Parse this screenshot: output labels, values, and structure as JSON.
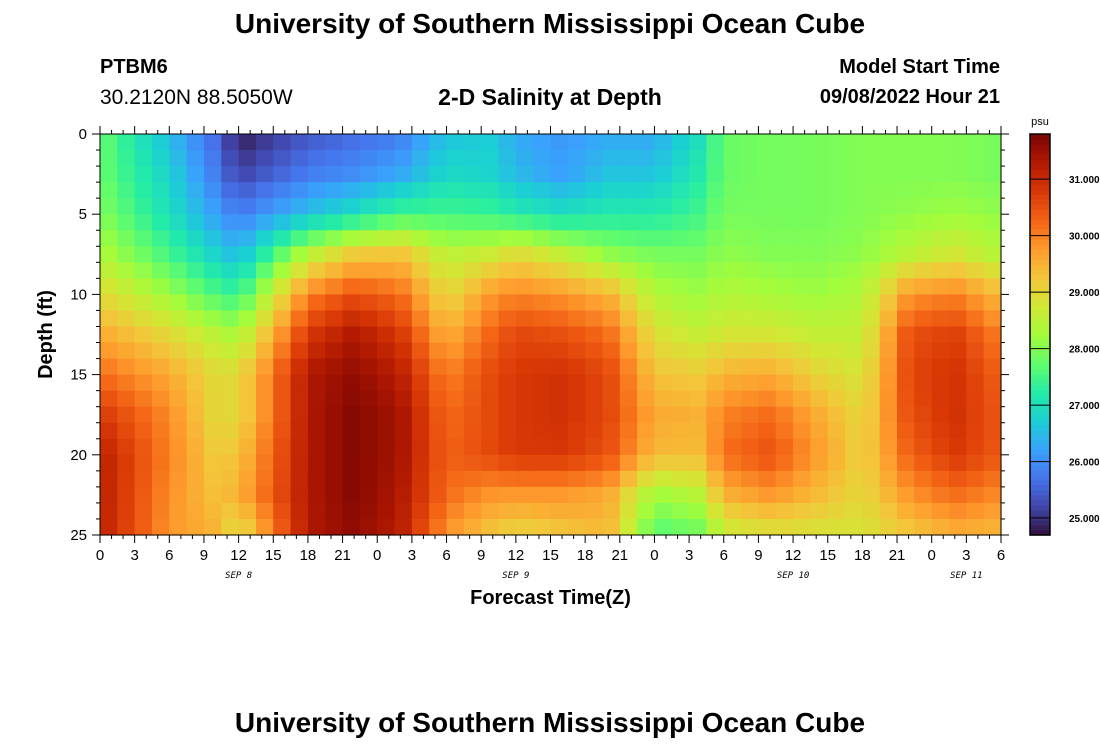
{
  "header": {
    "title": "University of Southern Mississippi Ocean Cube",
    "station": "PTBM6",
    "coords": "30.2120N  88.5050W",
    "subtitle": "2-D Salinity at Depth",
    "start_label": "Model Start Time",
    "start_value": "09/08/2022 Hour 21"
  },
  "footer": {
    "title": "University of Southern Mississippi Ocean Cube"
  },
  "chart_data": {
    "type": "heatmap",
    "title": "2-D Salinity at Depth",
    "xlabel": "Forecast Time(Z)",
    "ylabel": "Depth (ft)",
    "x_unit": "forecast hour from Sep 8 00Z",
    "xlim": [
      0,
      78
    ],
    "ylim": [
      0,
      25
    ],
    "y_inverted": true,
    "x_ticks": [
      0,
      3,
      6,
      9,
      12,
      15,
      18,
      21,
      24,
      27,
      30,
      33,
      36,
      39,
      42,
      45,
      48,
      51,
      54,
      57,
      60,
      63,
      66,
      69,
      72,
      75,
      78
    ],
    "x_tick_labels": [
      "0",
      "3",
      "6",
      "9",
      "12",
      "15",
      "18",
      "21",
      "0",
      "3",
      "6",
      "9",
      "12",
      "15",
      "18",
      "21",
      "0",
      "3",
      "6",
      "9",
      "12",
      "15",
      "18",
      "21",
      "0",
      "3",
      "6"
    ],
    "y_ticks": [
      0,
      5,
      10,
      15,
      20,
      25
    ],
    "y_tick_labels": [
      "0",
      "5",
      "10",
      "15",
      "20",
      "25"
    ],
    "date_labels": [
      {
        "text": "SEP 8",
        "hour": 12
      },
      {
        "text": "SEP 9",
        "hour": 36
      },
      {
        "text": "SEP 10",
        "hour": 60
      },
      {
        "text": "SEP 11",
        "hour": 75
      }
    ],
    "colorbar": {
      "unit": "psu",
      "min": 24.7,
      "max": 31.8,
      "tick_values": [
        25,
        26,
        27,
        28,
        29,
        30,
        31
      ],
      "tick_labels": [
        "25.000",
        "26.000",
        "27.000",
        "28.000",
        "29.000",
        "30.000",
        "31.000"
      ],
      "colors": [
        "#30123b",
        "#4145ab",
        "#4675ed",
        "#39a2fc",
        "#1bcfd4",
        "#24eca6",
        "#61fc6c",
        "#a4fc3b",
        "#d1e834",
        "#f3c63a",
        "#fe9b2d",
        "#f36315",
        "#d93806",
        "#b11901",
        "#7a0403"
      ]
    },
    "grid_hours": [
      0,
      6,
      10,
      12,
      18,
      22,
      26,
      30,
      34,
      36,
      40,
      44,
      48,
      52,
      54,
      58,
      62,
      66,
      70,
      74,
      78
    ],
    "grid_depths": [
      0,
      2.5,
      5,
      7.5,
      10,
      12.5,
      15,
      17.5,
      20,
      22.5,
      25
    ],
    "salinity": [
      [
        27.8,
        27.8,
        28.0,
        28.4,
        29.0,
        29.6,
        30.2,
        30.8,
        31.2,
        31.2,
        31.2
      ],
      [
        26.5,
        26.8,
        27.0,
        27.5,
        28.2,
        29.0,
        29.6,
        29.9,
        30.0,
        29.9,
        29.8
      ],
      [
        25.6,
        25.8,
        26.2,
        26.8,
        27.6,
        28.5,
        29.0,
        29.0,
        29.2,
        29.3,
        29.5
      ],
      [
        24.8,
        25.2,
        25.8,
        26.5,
        27.4,
        28.3,
        29.0,
        29.0,
        29.3,
        29.5,
        28.8
      ],
      [
        25.4,
        25.8,
        26.6,
        28.5,
        30.0,
        30.8,
        31.3,
        31.3,
        31.3,
        31.3,
        31.3
      ],
      [
        25.6,
        26.0,
        27.0,
        29.2,
        30.5,
        31.3,
        31.6,
        31.7,
        31.7,
        31.7,
        31.6
      ],
      [
        25.8,
        26.3,
        27.5,
        29.3,
        30.2,
        30.8,
        31.2,
        31.4,
        31.4,
        31.3,
        31.2
      ],
      [
        26.6,
        26.9,
        27.5,
        28.5,
        29.0,
        29.5,
        30.0,
        30.2,
        30.3,
        30.2,
        29.8
      ],
      [
        26.7,
        26.8,
        27.4,
        28.7,
        29.8,
        30.3,
        30.6,
        30.6,
        30.6,
        29.8,
        29.2
      ],
      [
        26.3,
        26.5,
        27.2,
        29.0,
        30.0,
        30.6,
        30.8,
        30.8,
        30.8,
        29.8,
        29.0
      ],
      [
        26.1,
        26.2,
        27.0,
        28.6,
        29.8,
        30.5,
        30.9,
        30.9,
        30.8,
        29.8,
        29.2
      ],
      [
        26.3,
        26.6,
        27.2,
        28.1,
        29.5,
        30.2,
        30.6,
        30.6,
        30.5,
        29.6,
        29.4
      ],
      [
        26.3,
        26.6,
        27.2,
        27.9,
        28.4,
        28.9,
        29.3,
        29.6,
        29.4,
        28.2,
        27.6
      ],
      [
        27.0,
        27.2,
        27.5,
        27.9,
        28.2,
        28.6,
        29.2,
        29.5,
        29.4,
        28.5,
        27.8
      ],
      [
        27.8,
        27.8,
        27.9,
        28.1,
        28.4,
        28.8,
        29.5,
        30.0,
        30.2,
        29.5,
        28.6
      ],
      [
        27.9,
        27.9,
        27.9,
        28.0,
        28.3,
        28.8,
        29.6,
        30.2,
        30.5,
        29.8,
        28.8
      ],
      [
        27.9,
        27.9,
        27.9,
        28.0,
        28.2,
        28.6,
        29.1,
        29.6,
        29.8,
        29.4,
        28.8
      ],
      [
        28.0,
        28.0,
        28.0,
        28.1,
        28.4,
        28.6,
        28.8,
        29.0,
        29.1,
        29.0,
        28.8
      ],
      [
        28.0,
        28.0,
        28.1,
        28.5,
        29.8,
        30.5,
        30.6,
        30.5,
        30.3,
        29.8,
        29.2
      ],
      [
        28.0,
        28.0,
        28.2,
        28.8,
        30.0,
        30.7,
        30.9,
        30.9,
        30.8,
        30.2,
        29.5
      ],
      [
        27.9,
        27.9,
        28.1,
        28.4,
        29.4,
        30.0,
        30.3,
        30.4,
        30.4,
        29.9,
        29.4
      ]
    ]
  }
}
